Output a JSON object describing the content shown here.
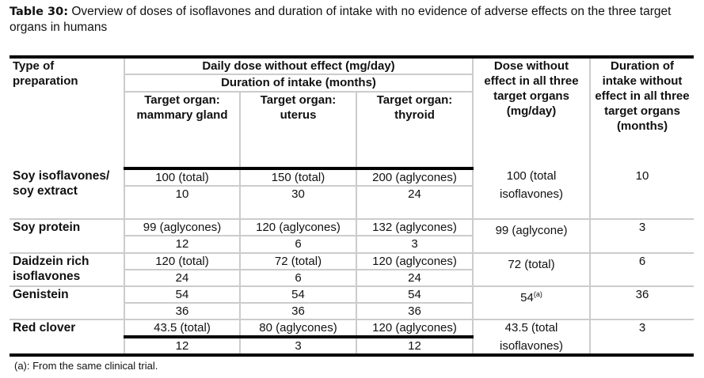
{
  "caption": {
    "label": "Table 30:",
    "text": "Overview of doses of isoflavones and duration of intake with no evidence of adverse effects on the three target organs in humans"
  },
  "header": {
    "type": "Type of preparation",
    "daily_dose": "Daily dose without effect (mg/day)",
    "duration": "Duration of intake (months)",
    "organs": [
      "Target organ: mammary gland",
      "Target organ: uterus",
      "Target organ: thyroid"
    ],
    "dose_all": "Dose without effect in all three target organs (mg/day)",
    "duration_all": "Duration of intake without effect in all three target organs (months)"
  },
  "rows": [
    {
      "type": "Soy isoflavones/ soy extract",
      "doses": [
        "100 (total)",
        "150 (total)",
        "200 (aglycones)"
      ],
      "durations": [
        "10",
        "30",
        "24"
      ],
      "dose_all": "100 (total isoflavones)",
      "dose_all_note": "",
      "duration_all": "10"
    },
    {
      "type": "Soy protein",
      "doses": [
        "99 (aglycones)",
        "120 (aglycones)",
        "132 (aglycones)"
      ],
      "durations": [
        "12",
        "6",
        "3"
      ],
      "dose_all": "99 (aglycone)",
      "dose_all_note": "",
      "duration_all": "3"
    },
    {
      "type": "Daidzein rich isoflavones",
      "doses": [
        "120 (total)",
        "72 (total)",
        "120 (aglycones)"
      ],
      "durations": [
        "24",
        "6",
        "24"
      ],
      "dose_all": "72 (total)",
      "dose_all_note": "",
      "duration_all": "6"
    },
    {
      "type": "Genistein",
      "doses": [
        "54",
        "54",
        "54"
      ],
      "durations": [
        "36",
        "36",
        "36"
      ],
      "dose_all": "54",
      "dose_all_note": "(a)",
      "duration_all": "36"
    },
    {
      "type": "Red clover",
      "doses": [
        "43.5 (total)",
        "80 (aglycones)",
        "120 (aglycones)"
      ],
      "durations": [
        "12",
        "3",
        "12"
      ],
      "dose_all": "43.5 (total isoflavones)",
      "dose_all_note": "",
      "duration_all": "3"
    }
  ],
  "footnote": "(a):  From the same clinical trial."
}
